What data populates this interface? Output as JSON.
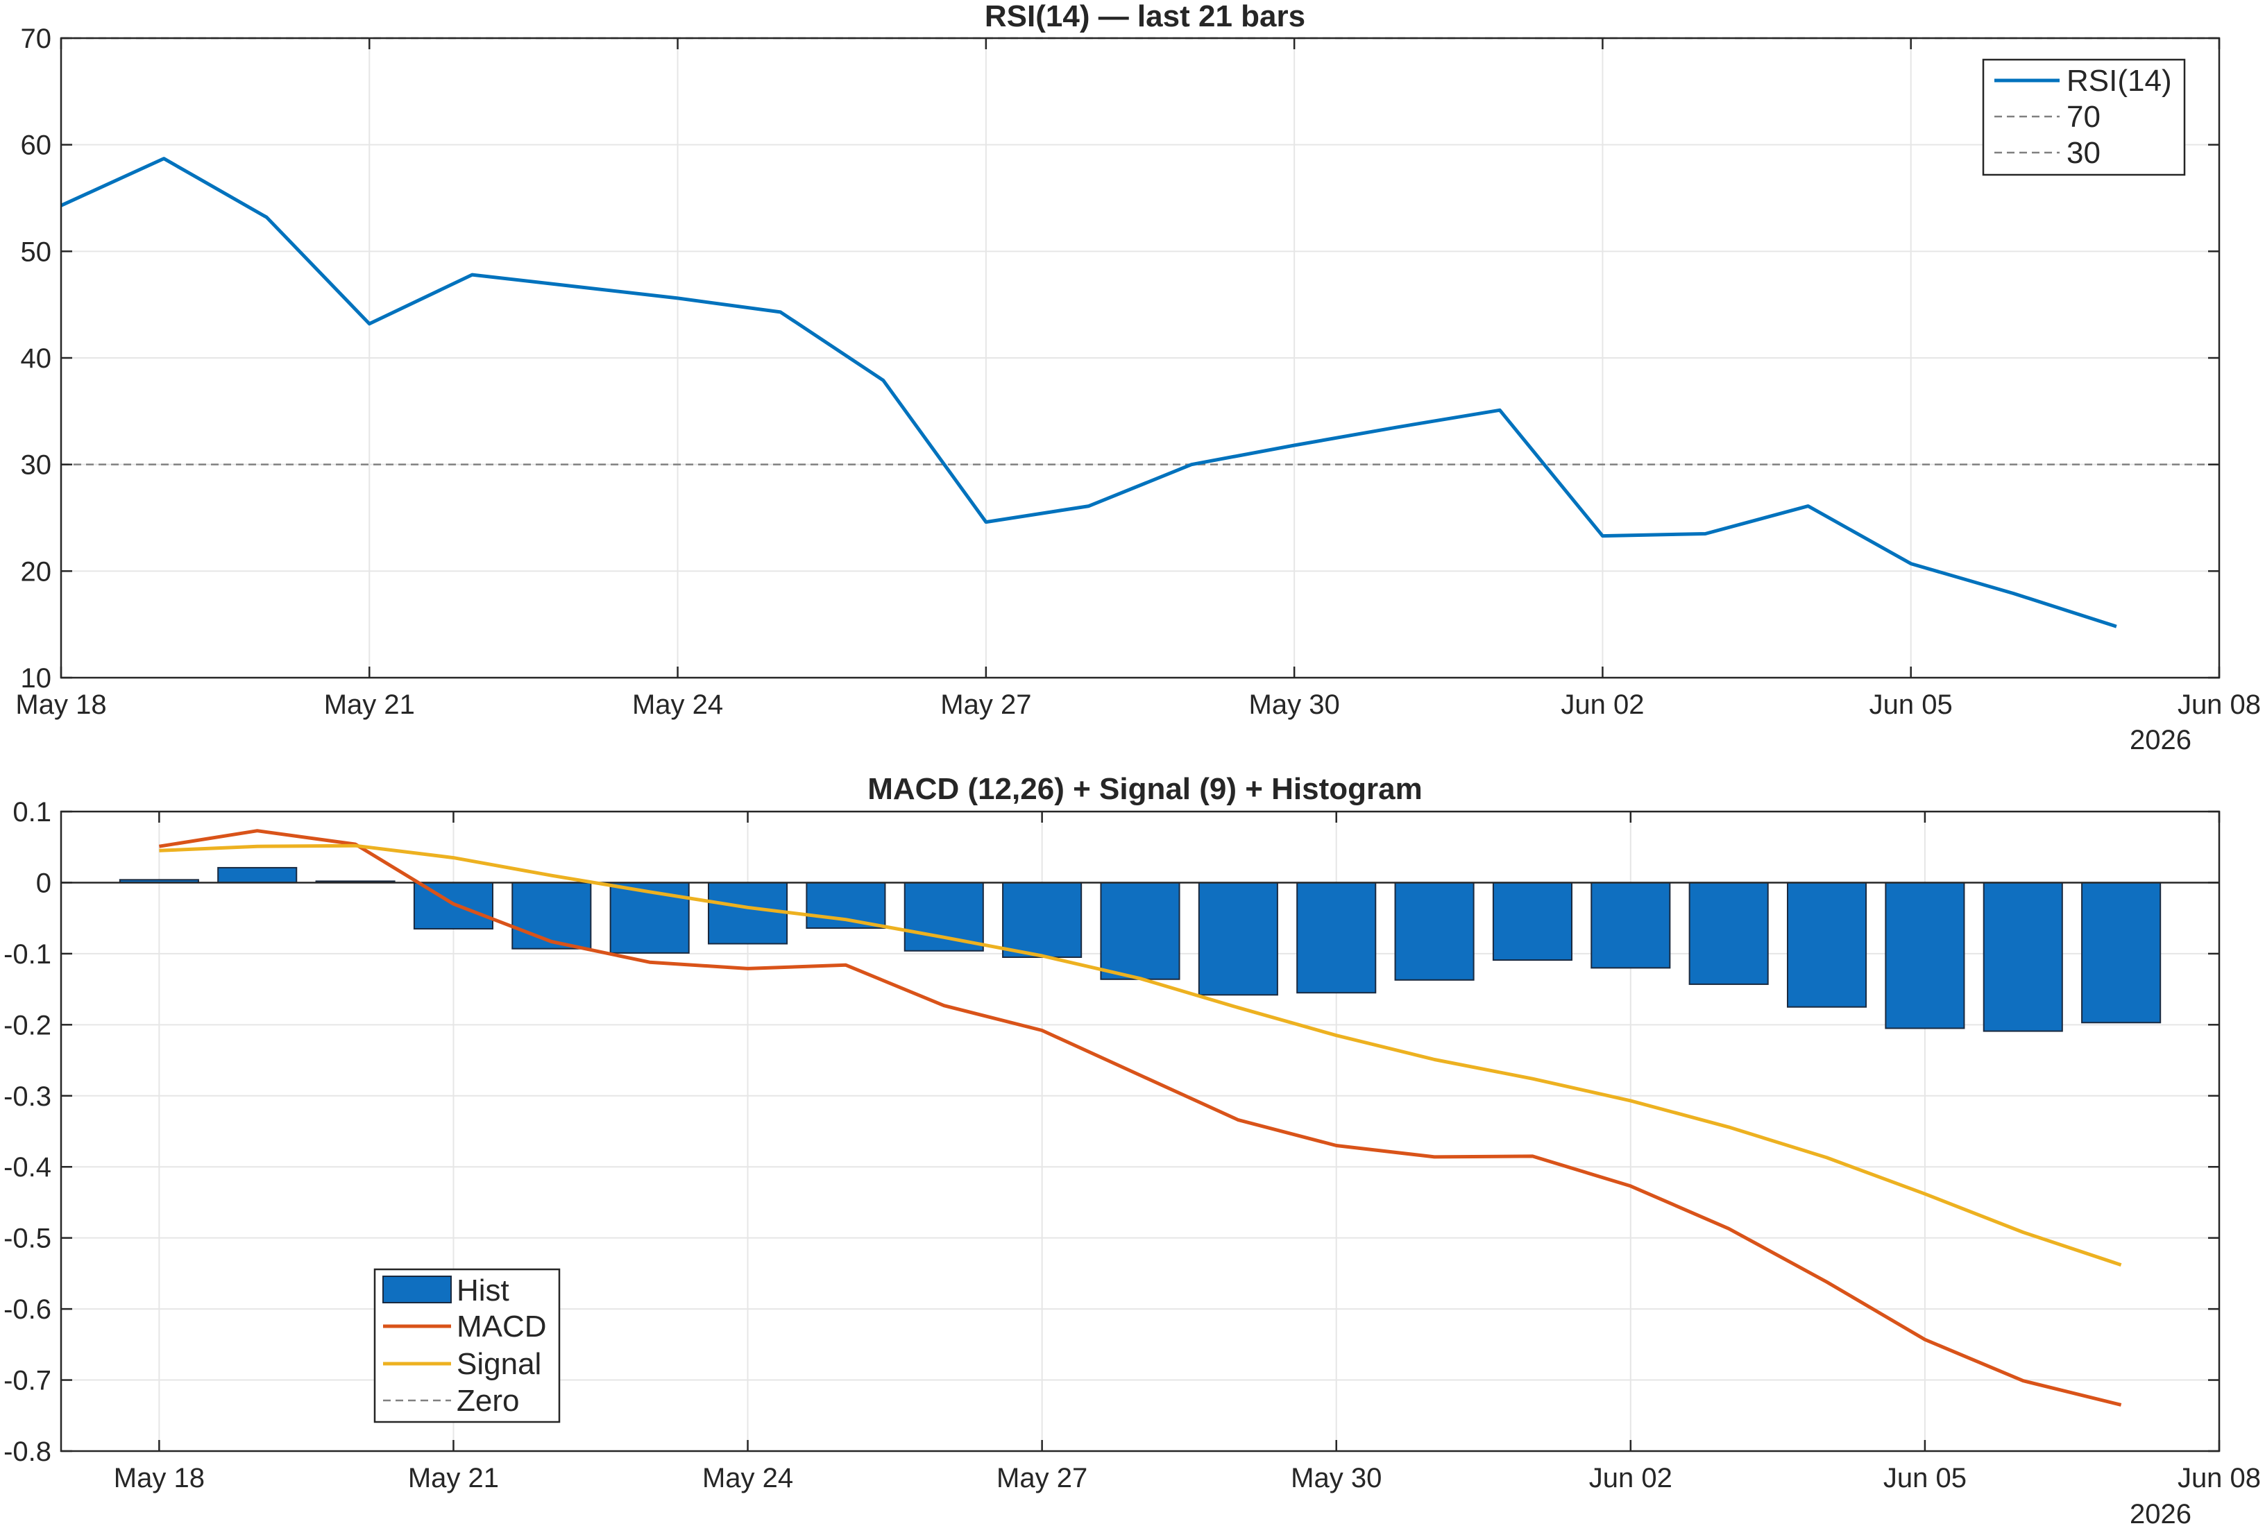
{
  "colors": {
    "rsi": "#0072BD",
    "macd": "#D95319",
    "signal": "#EDB120",
    "hist_fill": "#0F6FC0",
    "hist_edge": "#1a2a40",
    "ref_line": "#808080",
    "axis": "#262626",
    "grid": "#e6e6e6"
  },
  "chart_data": [
    {
      "type": "line",
      "title": "RSI(14) — last 21 bars",
      "x": [
        "2026-05-18",
        "2026-05-19",
        "2026-05-20",
        "2026-05-21",
        "2026-05-22",
        "2026-05-23",
        "2026-05-24",
        "2026-05-25",
        "2026-05-26",
        "2026-05-27",
        "2026-05-28",
        "2026-05-29",
        "2026-05-30",
        "2026-05-31",
        "2026-06-01",
        "2026-06-02",
        "2026-06-03",
        "2026-06-04",
        "2026-06-05",
        "2026-06-06",
        "2026-06-07"
      ],
      "series": [
        {
          "name": "RSI(14)",
          "values": [
            54.3,
            58.7,
            53.2,
            43.2,
            47.8,
            46.7,
            45.6,
            44.3,
            37.9,
            24.6,
            26.1,
            30.0,
            31.8,
            33.5,
            35.1,
            23.3,
            23.5,
            26.1,
            20.7,
            17.9,
            14.8
          ]
        }
      ],
      "reference_lines": [
        {
          "name": "70",
          "y": 70
        },
        {
          "name": "30",
          "y": 30
        }
      ],
      "xlim": [
        "2026-05-18",
        "2026-06-08"
      ],
      "ylim": [
        10,
        70
      ],
      "x_ticks": [
        "May 18",
        "May 21",
        "May 24",
        "May 27",
        "May 30",
        "Jun 02",
        "Jun 05",
        "Jun 08"
      ],
      "y_ticks": [
        "10",
        "20",
        "30",
        "40",
        "50",
        "60",
        "70"
      ],
      "year_label": "2026",
      "grid": true,
      "legend": "top-right",
      "legend_entries": [
        "RSI(14)",
        "70",
        "30"
      ]
    },
    {
      "type": "bar",
      "title": "MACD (12,26) + Signal (9) + Histogram",
      "x": [
        "2026-05-18",
        "2026-05-19",
        "2026-05-20",
        "2026-05-21",
        "2026-05-22",
        "2026-05-23",
        "2026-05-24",
        "2026-05-25",
        "2026-05-26",
        "2026-05-27",
        "2026-05-28",
        "2026-05-29",
        "2026-05-30",
        "2026-05-31",
        "2026-06-01",
        "2026-06-02",
        "2026-06-03",
        "2026-06-04",
        "2026-06-05",
        "2026-06-06",
        "2026-06-07"
      ],
      "series": [
        {
          "name": "Hist",
          "kind": "bar",
          "values": [
            0.004,
            0.021,
            0.002,
            -0.065,
            -0.093,
            -0.099,
            -0.086,
            -0.064,
            -0.096,
            -0.105,
            -0.136,
            -0.158,
            -0.155,
            -0.137,
            -0.109,
            -0.12,
            -0.143,
            -0.175,
            -0.205,
            -0.209,
            -0.197
          ]
        },
        {
          "name": "MACD",
          "kind": "line",
          "values": [
            0.051,
            0.073,
            0.054,
            -0.03,
            -0.083,
            -0.112,
            -0.121,
            -0.116,
            -0.173,
            -0.208,
            -0.271,
            -0.334,
            -0.37,
            -0.386,
            -0.385,
            -0.427,
            -0.487,
            -0.562,
            -0.643,
            -0.701,
            -0.735
          ]
        },
        {
          "name": "Signal",
          "kind": "line",
          "values": [
            0.045,
            0.051,
            0.052,
            0.035,
            0.01,
            -0.013,
            -0.035,
            -0.052,
            -0.077,
            -0.103,
            -0.135,
            -0.176,
            -0.215,
            -0.249,
            -0.276,
            -0.307,
            -0.344,
            -0.387,
            -0.438,
            -0.492,
            -0.538
          ]
        },
        {
          "name": "Zero",
          "kind": "reference",
          "y": 0
        }
      ],
      "xlim": [
        "2026-05-17",
        "2026-06-08"
      ],
      "ylim": [
        -0.8,
        0.1
      ],
      "x_ticks": [
        "May 18",
        "May 21",
        "May 24",
        "May 27",
        "May 30",
        "Jun 02",
        "Jun 05",
        "Jun 08"
      ],
      "y_ticks": [
        "0.1",
        "0",
        "-0.1",
        "-0.2",
        "-0.3",
        "-0.4",
        "-0.5",
        "-0.6",
        "-0.7",
        "-0.8"
      ],
      "year_label": "2026",
      "grid": true,
      "legend": "bottom-left",
      "legend_entries": [
        "Hist",
        "MACD",
        "Signal",
        "Zero"
      ]
    }
  ]
}
